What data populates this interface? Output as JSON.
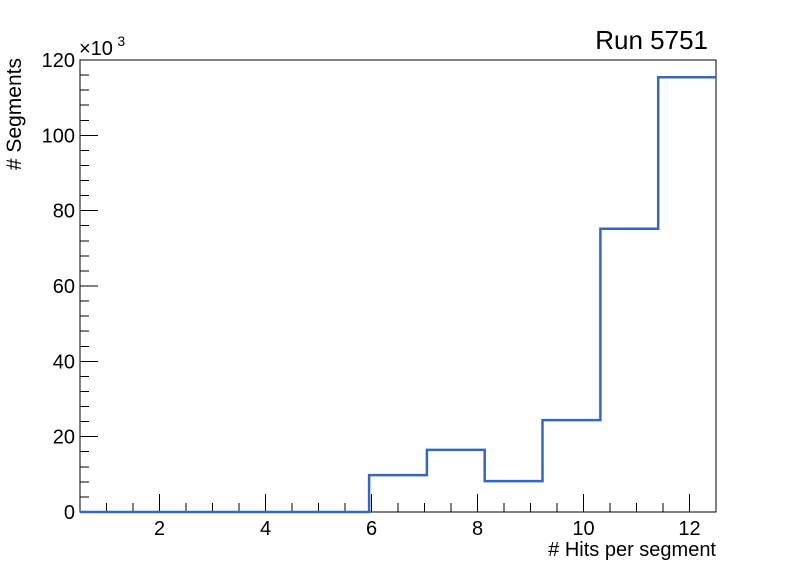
{
  "chart_data": {
    "type": "histogram-step",
    "title": "Run 5751",
    "xlabel": "# Hits per segment",
    "ylabel": "# Segments",
    "y_multiplier_base": "×10",
    "y_multiplier_exp": "3",
    "xlim": [
      0.5,
      12.5
    ],
    "ylim": [
      0,
      120000
    ],
    "bin_edges": [
      0.5,
      1.5909,
      2.6818,
      3.7727,
      4.8636,
      5.9545,
      7.0455,
      8.1364,
      9.2273,
      10.3182,
      11.4091,
      12.5
    ],
    "values": [
      0,
      0,
      0,
      0,
      0,
      9800,
      16500,
      8200,
      24400,
      75200,
      115400
    ],
    "x_major_ticks": [
      2,
      4,
      6,
      8,
      10,
      12
    ],
    "x_major_tick_labels": [
      "2",
      "4",
      "6",
      "8",
      "10",
      "12"
    ],
    "x_minor_step": 0.5,
    "y_major_ticks": [
      0,
      20000,
      40000,
      60000,
      80000,
      100000,
      120000
    ],
    "y_major_tick_labels": [
      "0",
      "20",
      "40",
      "60",
      "80",
      "100",
      "120"
    ],
    "y_minor_step": 4000,
    "grid": false,
    "legend_position": "none",
    "line_color": "#3767bd",
    "frame_color": "#000000",
    "background_color": "#ffffff"
  }
}
